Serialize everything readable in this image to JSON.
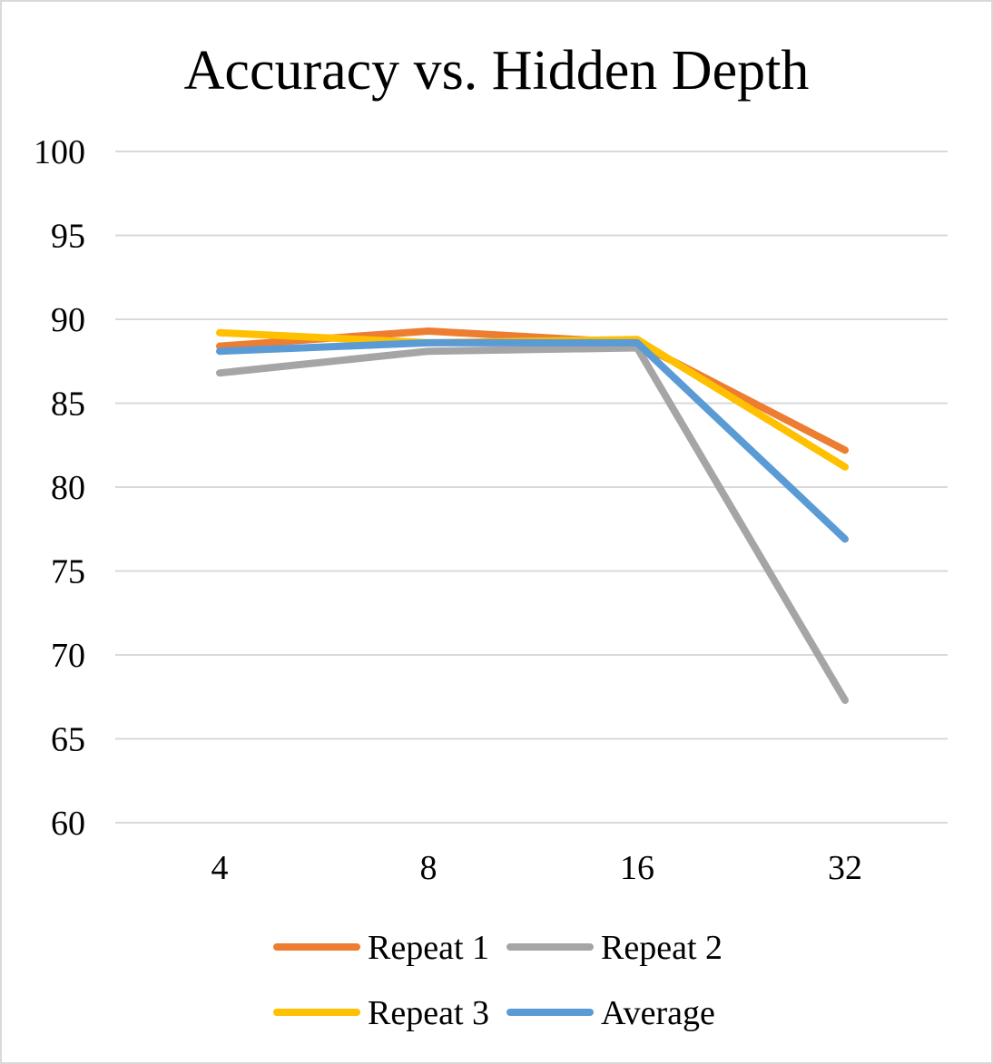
{
  "chart_data": {
    "type": "line",
    "title": "Accuracy vs. Hidden Depth",
    "xlabel": "",
    "ylabel": "",
    "categories": [
      "4",
      "8",
      "16",
      "32"
    ],
    "ylim": [
      60,
      100
    ],
    "yticks": [
      60,
      65,
      70,
      75,
      80,
      85,
      90,
      95,
      100
    ],
    "grid": true,
    "legend_position": "bottom",
    "series": [
      {
        "name": "Repeat 1",
        "color": "#ED7D31",
        "values": [
          88.4,
          89.3,
          88.6,
          82.2
        ]
      },
      {
        "name": "Repeat 2",
        "color": "#A5A5A5",
        "values": [
          86.8,
          88.1,
          88.3,
          67.3
        ]
      },
      {
        "name": "Repeat 3",
        "color": "#FFC000",
        "values": [
          89.2,
          88.6,
          88.8,
          81.2
        ]
      },
      {
        "name": "Average",
        "color": "#5B9BD5",
        "values": [
          88.1,
          88.6,
          88.6,
          76.9
        ]
      }
    ]
  }
}
